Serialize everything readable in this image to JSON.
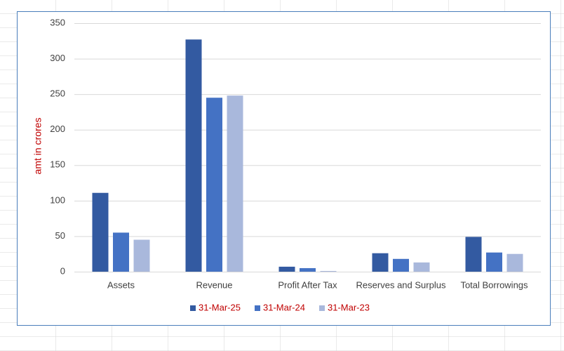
{
  "chart_data": {
    "type": "bar",
    "y_label": "amt in crores",
    "categories": [
      "Assets",
      "Revenue",
      "Profit After Tax",
      "Reserves and Surplus",
      "Total Borrowings"
    ],
    "series": [
      {
        "name": "31-Mar-25",
        "color": "#335aa1",
        "values": [
          111,
          327,
          7,
          26,
          49
        ]
      },
      {
        "name": "31-Mar-24",
        "color": "#4472c4",
        "values": [
          55,
          245,
          5,
          18,
          27
        ]
      },
      {
        "name": "31-Mar-23",
        "color": "#a9b8dc",
        "values": [
          45,
          248,
          1,
          13,
          25
        ]
      }
    ],
    "ylim": [
      0,
      350
    ],
    "yticks": [
      0,
      50,
      100,
      150,
      200,
      250,
      300,
      350
    ],
    "grid": true,
    "legend": "bottom"
  }
}
